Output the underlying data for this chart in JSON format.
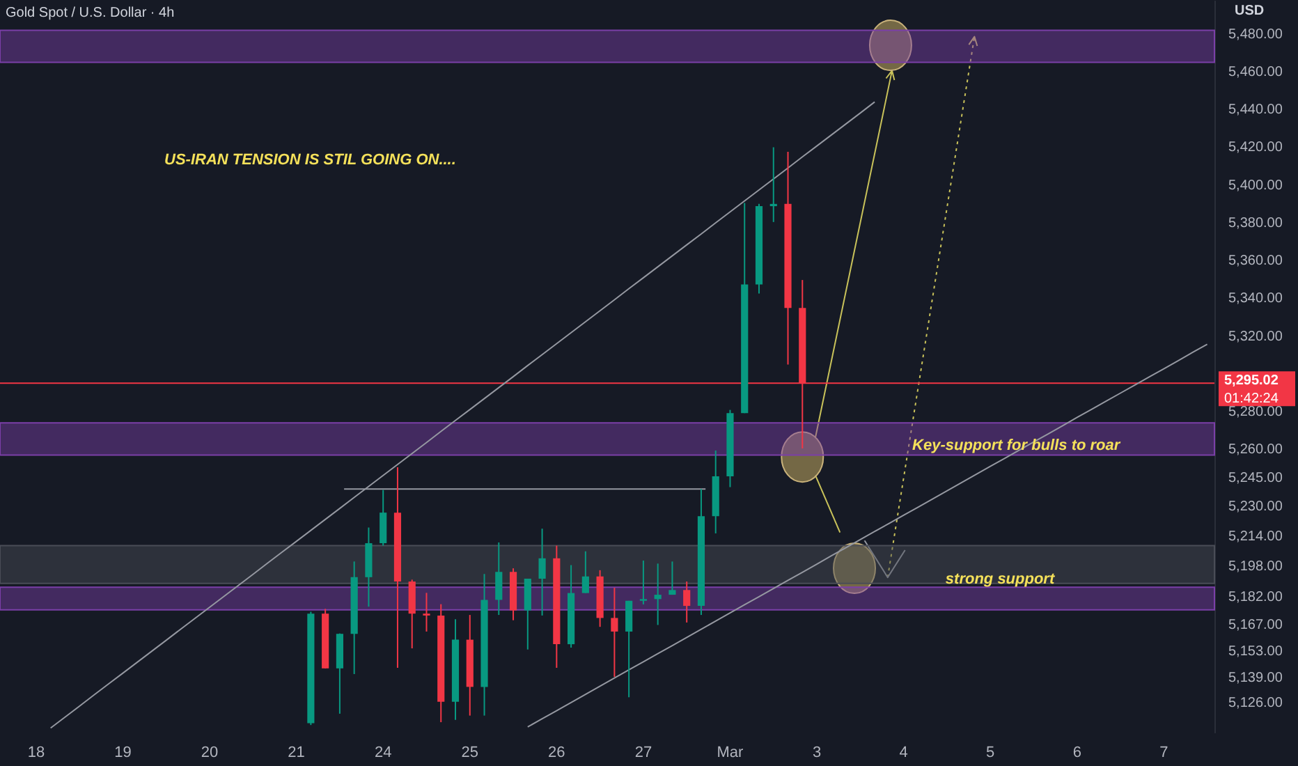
{
  "chart_data": {
    "type": "candlestick",
    "title": "Gold Spot / U.S. Dollar · 4h",
    "ylabel": "USD",
    "categories": [
      null,
      null,
      "18",
      null,
      null,
      null,
      null,
      null,
      "19",
      null,
      null,
      null,
      null,
      null,
      "20",
      null,
      null,
      null,
      null,
      null,
      "21",
      null,
      null,
      null,
      null,
      null,
      "24",
      null,
      null,
      null,
      null,
      null,
      "25",
      null,
      null,
      null,
      null,
      null,
      "26",
      null,
      null,
      null,
      null,
      null,
      "27",
      null,
      null,
      null,
      null,
      null,
      "Mar",
      null,
      null,
      null,
      null,
      null,
      "3",
      null,
      null,
      null,
      null,
      null,
      "4",
      null,
      null,
      null,
      null,
      null,
      "5",
      null,
      null,
      null,
      null,
      null,
      "6",
      null,
      null,
      null,
      null,
      null,
      "7",
      null,
      null,
      null
    ],
    "ohlc": [
      null,
      null,
      null,
      null,
      null,
      null,
      null,
      null,
      null,
      null,
      null,
      null,
      null,
      null,
      null,
      null,
      null,
      null,
      null,
      null,
      null,
      [
        5115,
        5174,
        5114,
        5173
      ],
      [
        5173,
        5175.5,
        5144,
        5144
      ],
      [
        5144,
        5162.5,
        5120,
        5162.3
      ],
      [
        5162.3,
        5200.6,
        5141,
        5192.3
      ],
      [
        5192.3,
        5218.6,
        5176.7,
        5210.3
      ],
      [
        5210.3,
        5238.5,
        5209,
        5226.5
      ],
      [
        5226.5,
        5250.5,
        5144.3,
        5190
      ],
      [
        5190,
        5191,
        5154.6,
        5173
      ],
      [
        5173,
        5184,
        5163.5,
        5172
      ],
      [
        5172,
        5178,
        5115.5,
        5126.3
      ],
      [
        5126.3,
        5170,
        5116.7,
        5159.2
      ],
      [
        5159.2,
        5172.3,
        5119,
        5134.2
      ],
      [
        5134.2,
        5194,
        5119,
        5180.3
      ],
      [
        5180.3,
        5210.7,
        5172.3,
        5195.1
      ],
      [
        5195.1,
        5197,
        5169.5,
        5174.7
      ],
      [
        5174.7,
        5191.5,
        5154,
        5191.5
      ],
      [
        5191.5,
        5218,
        5172,
        5202.3
      ],
      [
        5202.3,
        5209,
        5144.3,
        5156.8
      ],
      [
        5156.8,
        5198.7,
        5155,
        5183.9
      ],
      [
        5183.9,
        5206,
        5183.9,
        5192.7
      ],
      [
        5192.7,
        5196,
        5166,
        5170.7
      ],
      [
        5170.7,
        5186.7,
        5139.5,
        5163.5
      ],
      [
        5163.5,
        5179.8,
        5128.7,
        5179.8
      ],
      [
        5179.8,
        5201.1,
        5177.9,
        5180.7
      ],
      [
        5180.7,
        5199.5,
        5167,
        5183
      ],
      [
        5183,
        5200.6,
        5183,
        5185.5
      ],
      [
        5185.5,
        5190,
        5168.3,
        5177.1
      ],
      [
        5177.1,
        5239,
        5172.3,
        5224.6
      ],
      [
        5224.6,
        5259.4,
        5215.5,
        5245.7
      ],
      [
        5245.7,
        5280.9,
        5240,
        5279.2
      ],
      [
        5279.2,
        5390.5,
        5279.2,
        5347.3
      ],
      [
        5347.3,
        5390,
        5342.5,
        5388.8
      ],
      [
        5388.8,
        5420,
        5380.4,
        5390
      ],
      [
        5390,
        5417.6,
        5304.9,
        5334.9
      ],
      [
        5334.9,
        5349.7,
        5260.5,
        5295.02
      ],
      null,
      null,
      null,
      null,
      null,
      null,
      null,
      null,
      null,
      null,
      null,
      null,
      null,
      null,
      null,
      null,
      null,
      null,
      null,
      null,
      null,
      null,
      null,
      null,
      null,
      null,
      null,
      null
    ],
    "colors": [
      null,
      null,
      null,
      null,
      null,
      null,
      null,
      null,
      null,
      null,
      null,
      null,
      null,
      null,
      null,
      null,
      null,
      null,
      null,
      null,
      null,
      "#089981",
      "#f23645",
      "#089981",
      "#089981",
      "#089981",
      "#089981",
      "#f23645",
      "#f23645",
      "#f23645",
      "#f23645",
      "#089981",
      "#f23645",
      "#089981",
      "#089981",
      "#f23645",
      "#089981",
      "#089981",
      "#f23645",
      "#089981",
      "#089981",
      "#f23645",
      "#f23645",
      "#089981",
      "#089981",
      "#089981",
      "#089981",
      "#f23645",
      "#089981",
      "#089981",
      "#089981",
      "#089981",
      "#089981",
      "#089981",
      "#f23645",
      "#f23645",
      null,
      null,
      null,
      null,
      null,
      null,
      null,
      null,
      null,
      null,
      null,
      null,
      null,
      null,
      null,
      null,
      null,
      null,
      null,
      null,
      null,
      null,
      null,
      null,
      null,
      null,
      null,
      null
    ],
    "series": [
      {
        "type": "line",
        "color": "#9598a1",
        "line_style": "solid",
        "values": [
          null,
          null,
          null,
          5112.4,
          5118.2,
          5124.0,
          5129.9,
          5135.7,
          5141.5,
          5147.3,
          5153.1,
          5158.9,
          5164.8,
          5170.6,
          5176.4,
          5182.2,
          5188.0,
          5193.8,
          5199.7,
          5205.5,
          5211.3,
          5217.1,
          5222.9,
          5228.7,
          5234.6,
          5240.4,
          5246.2,
          5252.0,
          5257.8,
          5263.6,
          5269.5,
          5275.3,
          5281.1,
          5286.9,
          5292.7,
          5298.5,
          5304.4,
          5310.2,
          5316.0,
          5321.8,
          5327.6,
          5333.4,
          5339.2,
          5345.1,
          5350.9,
          5356.7,
          5362.5,
          5368.3,
          5374.1,
          5380.0,
          5385.8,
          5391.6,
          5397.4,
          5403.2,
          5409.0,
          5414.9,
          5420.7,
          5426.5,
          5432.3,
          5438.1,
          5444.0,
          null,
          null,
          null,
          null,
          null,
          null,
          null,
          null,
          null,
          null,
          null,
          null,
          null,
          null,
          null,
          null,
          null,
          null,
          null,
          null,
          null,
          null,
          null
        ]
      },
      {
        "type": "line",
        "color": "#9598a1",
        "line_style": "solid",
        "values": [
          null,
          null,
          null,
          null,
          null,
          null,
          null,
          null,
          null,
          null,
          null,
          null,
          null,
          null,
          null,
          null,
          null,
          null,
          null,
          null,
          null,
          null,
          null,
          null,
          null,
          null,
          null,
          null,
          null,
          null,
          null,
          null,
          null,
          null,
          null,
          null,
          5113.0,
          5117.3,
          5121.6,
          5125.9,
          5130.2,
          5134.6,
          5138.9,
          5143.2,
          5147.5,
          5151.8,
          5156.1,
          5160.4,
          5164.7,
          5169.1,
          5173.4,
          5177.7,
          5182.0,
          5186.3,
          5190.6,
          5194.9,
          5199.2,
          5203.6,
          5207.9,
          5212.2,
          5216.5,
          5220.8,
          5225.1,
          5229.4,
          5233.7,
          5238.0,
          5242.4,
          5246.7,
          5251.0,
          5255.3,
          5259.6,
          5263.9,
          5268.2,
          5272.5,
          5276.9,
          5281.2,
          5285.5,
          5289.8,
          5294.1,
          5298.4,
          5302.7,
          5307.0,
          5311.4,
          5315.7
        ]
      }
    ],
    "bands": [
      {
        "axis": "y",
        "from": 5465,
        "to": 5482,
        "color": "#7b3fa8"
      },
      {
        "axis": "y",
        "from": 5257,
        "to": 5274,
        "color": "#7b3fa8"
      },
      {
        "axis": "y",
        "from": 5189,
        "to": 5209,
        "color": "#4a4d57"
      },
      {
        "axis": "y",
        "from": 5175,
        "to": 5187,
        "color": "#7b3fa8"
      }
    ],
    "ref_lines": [
      {
        "axis": "y",
        "value": 5295.02,
        "label": "5,295.02",
        "color": "#f23645"
      }
    ],
    "annotations": [
      "US-IRAN TENSION IS STIL GOING ON....",
      "Key-support for bulls to roar",
      "strong support",
      "01:42:24"
    ],
    "ylim": [
      5110,
      5498
    ],
    "yticks": [
      {
        "value": 5480,
        "label": "5,480.00"
      },
      {
        "value": 5460,
        "label": "5,460.00"
      },
      {
        "value": 5440,
        "label": "5,440.00"
      },
      {
        "value": 5420,
        "label": "5,420.00"
      },
      {
        "value": 5400,
        "label": "5,400.00"
      },
      {
        "value": 5380,
        "label": "5,380.00"
      },
      {
        "value": 5360,
        "label": "5,360.00"
      },
      {
        "value": 5340,
        "label": "5,340.00"
      },
      {
        "value": 5320,
        "label": "5,320.00"
      },
      {
        "value": 5280,
        "label": "5,280.00"
      },
      {
        "value": 5260,
        "label": "5,260.00"
      },
      {
        "value": 5245,
        "label": "5,245.00"
      },
      {
        "value": 5230,
        "label": "5,230.00"
      },
      {
        "value": 5214,
        "label": "5,214.00"
      },
      {
        "value": 5198,
        "label": "5,198.00"
      },
      {
        "value": 5182,
        "label": "5,182.00"
      },
      {
        "value": 5167,
        "label": "5,167.00"
      },
      {
        "value": 5153,
        "label": "5,153.00"
      },
      {
        "value": 5139,
        "label": "5,139.00"
      },
      {
        "value": 5126,
        "label": "5,126.00"
      }
    ]
  }
}
